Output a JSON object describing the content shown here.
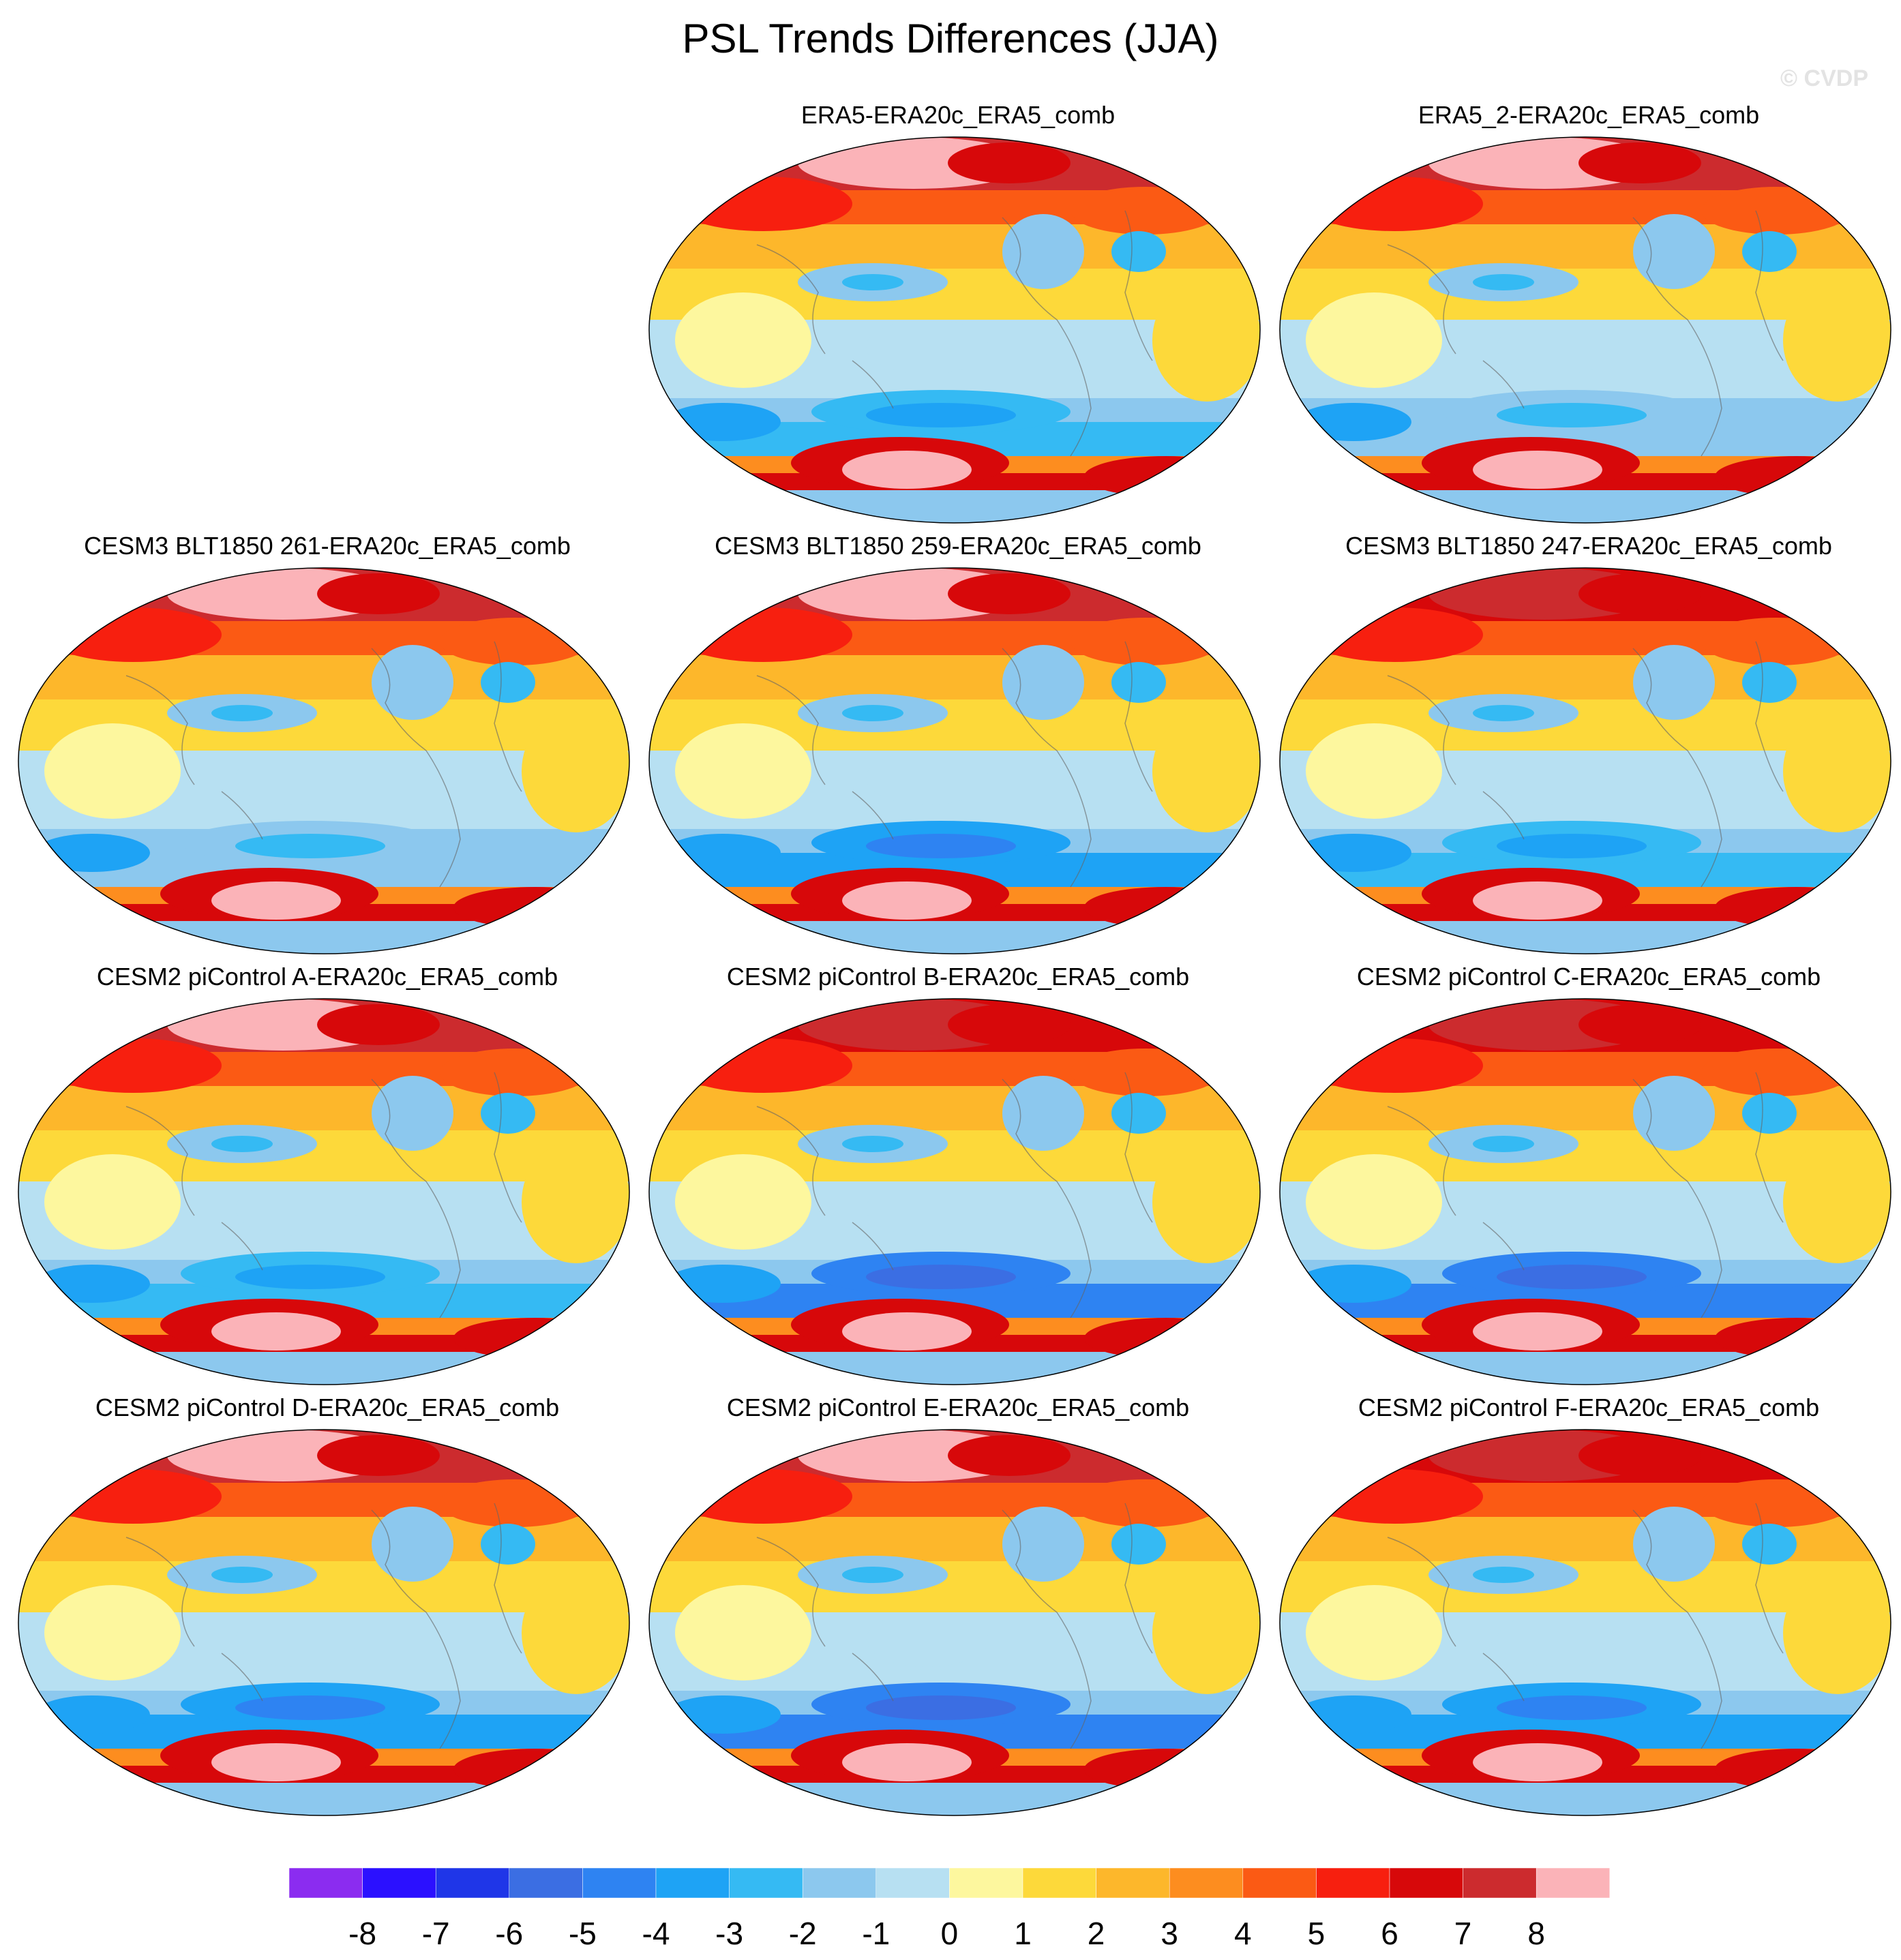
{
  "title": "PSL Trends Differences (JJA)",
  "copyright": "© CVDP",
  "chart_data": {
    "type": "heatmap",
    "title": "PSL Trends Differences (JJA)",
    "projection": "robinson",
    "colorbar": {
      "levels": [
        -8,
        -7,
        -6,
        -5,
        -4,
        -3,
        -2,
        -1,
        0,
        1,
        2,
        3,
        4,
        5,
        6,
        7,
        8
      ],
      "tick_labels": [
        "-8",
        "-7",
        "-6",
        "-5",
        "-4",
        "-3",
        "-2",
        "-1",
        "0",
        "1",
        "2",
        "3",
        "4",
        "5",
        "6",
        "7",
        "8"
      ],
      "colors": [
        "#8b2cf0",
        "#2b10ff",
        "#1f36e8",
        "#3b6ee3",
        "#2e83f2",
        "#1ea3f5",
        "#35baf3",
        "#8cc8ee",
        "#b7e0f2",
        "#fdf79e",
        "#fdd93a",
        "#fdb72b",
        "#fd8d1f",
        "#fb5a14",
        "#f71f0f",
        "#d7080a",
        "#cc2b2e",
        "#fbb3b8"
      ],
      "orientation": "horizontal",
      "placement": "bottom"
    },
    "panels": [
      {
        "label": "ERA5-ERA20c_ERA5_comb",
        "arctic_max": 8,
        "antarctic_max": 8,
        "southern_ocean_min": -4,
        "tropics_mean": -1
      },
      {
        "label": "ERA5_2-ERA20c_ERA5_comb",
        "arctic_max": 8,
        "antarctic_max": 8,
        "southern_ocean_min": -3,
        "tropics_mean": -1
      },
      {
        "label": "CESM3 BLT1850 261-ERA20c_ERA5_comb",
        "arctic_max": 8,
        "antarctic_max": 8,
        "southern_ocean_min": -3,
        "tropics_mean": -1
      },
      {
        "label": "CESM3 BLT1850 259-ERA20c_ERA5_comb",
        "arctic_max": 8,
        "antarctic_max": 8,
        "southern_ocean_min": -5,
        "tropics_mean": -1
      },
      {
        "label": "CESM3 BLT1850 247-ERA20c_ERA5_comb",
        "arctic_max": 7,
        "antarctic_max": 8,
        "southern_ocean_min": -4,
        "tropics_mean": -1
      },
      {
        "label": "CESM2 piControl A-ERA20c_ERA5_comb",
        "arctic_max": 8,
        "antarctic_max": 8,
        "southern_ocean_min": -4,
        "tropics_mean": -1
      },
      {
        "label": "CESM2 piControl B-ERA20c_ERA5_comb",
        "arctic_max": 7,
        "antarctic_max": 8,
        "southern_ocean_min": -6,
        "tropics_mean": -1
      },
      {
        "label": "CESM2 piControl C-ERA20c_ERA5_comb",
        "arctic_max": 7,
        "antarctic_max": 8,
        "southern_ocean_min": -6,
        "tropics_mean": -1
      },
      {
        "label": "CESM2 piControl D-ERA20c_ERA5_comb",
        "arctic_max": 8,
        "antarctic_max": 8,
        "southern_ocean_min": -5,
        "tropics_mean": -1
      },
      {
        "label": "CESM2 piControl E-ERA20c_ERA5_comb",
        "arctic_max": 8,
        "antarctic_max": 8,
        "southern_ocean_min": -6,
        "tropics_mean": -1
      },
      {
        "label": "CESM2 piControl F-ERA20c_ERA5_comb",
        "arctic_max": 7,
        "antarctic_max": 8,
        "southern_ocean_min": -5,
        "tropics_mean": -1
      }
    ]
  }
}
